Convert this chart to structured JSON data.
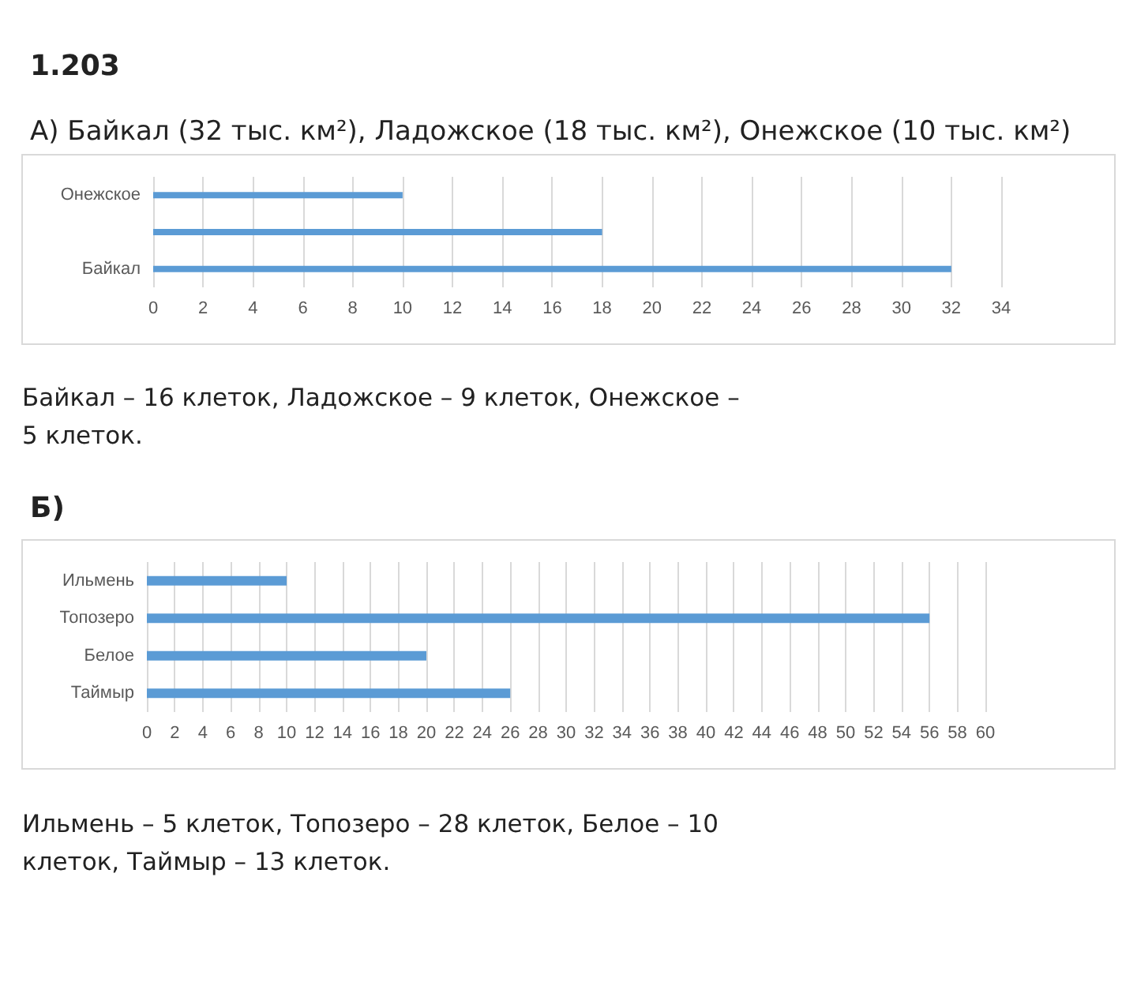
{
  "chart_data": [
    {
      "type": "bar",
      "orientation": "horizontal",
      "title": "1.203",
      "subtitle": "А) Байкал (32 тыс. км²), Ладожское (18 тыс. км²), Онежское (10 тыс. км²)",
      "categories": [
        "Онежское",
        null,
        "Байкал"
      ],
      "values": [
        10,
        18,
        32
      ],
      "color": "#5b9bd5",
      "xlim": [
        0,
        34
      ],
      "xticks": [
        0,
        2,
        4,
        6,
        8,
        10,
        12,
        14,
        16,
        18,
        20,
        22,
        24,
        26,
        28,
        30,
        32,
        34
      ],
      "grid": "x",
      "annotations": [
        "Байкал – 16 клеток, Ладожское – 9 клеток, Онежское – 5 клеток."
      ]
    },
    {
      "type": "bar",
      "orientation": "horizontal",
      "title": "Б)",
      "categories": [
        "Ильмень",
        "Топозеро",
        "Белое",
        "Таймыр"
      ],
      "values": [
        10,
        56,
        20,
        26
      ],
      "color": "#5b9bd5",
      "xlim": [
        0,
        60
      ],
      "xticks": [
        0,
        2,
        4,
        6,
        8,
        10,
        12,
        14,
        16,
        18,
        20,
        22,
        24,
        26,
        28,
        30,
        32,
        34,
        36,
        38,
        40,
        42,
        44,
        46,
        48,
        50,
        52,
        54,
        56,
        58,
        60
      ],
      "grid": "x",
      "annotations": [
        "Ильмень – 5 клеток, Топозеро – 28 клеток, Белое – 10 клеток, Таймыр – 13 клеток."
      ]
    }
  ]
}
